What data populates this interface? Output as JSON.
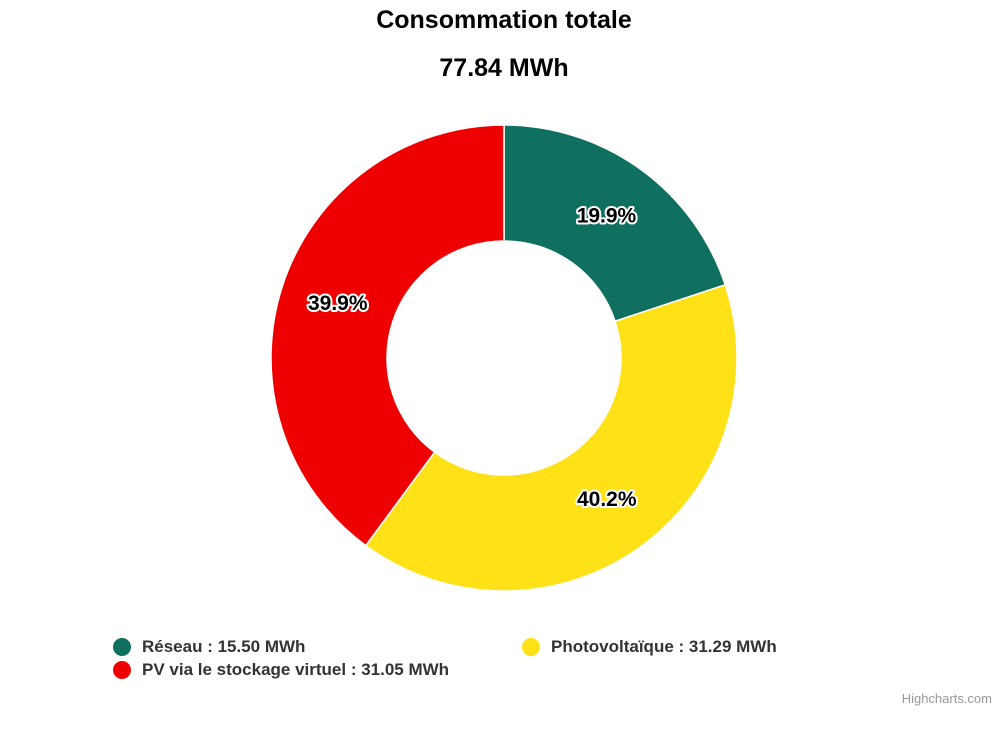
{
  "chart_data": {
    "type": "pie",
    "donut": true,
    "title": "Consommation totale",
    "subtitle": "77.84 MWh",
    "unit": "MWh",
    "slices": [
      {
        "name": "Réseau",
        "value": 15.5,
        "percent_label": "19.9%",
        "color": "#107060",
        "legend_label": "Réseau : 15.50 MWh"
      },
      {
        "name": "Photovoltaïque",
        "value": 31.29,
        "percent_label": "40.2%",
        "color": "#FFE117",
        "legend_label": "Photovoltaïque : 31.29 MWh"
      },
      {
        "name": "PV via le stockage virtuel",
        "value": 31.05,
        "percent_label": "39.9%",
        "color": "#EE0000",
        "legend_label": "PV via le stockage virtuel : 31.05 MWh"
      }
    ],
    "legend_position": "bottom"
  },
  "credits": "Highcharts.com"
}
